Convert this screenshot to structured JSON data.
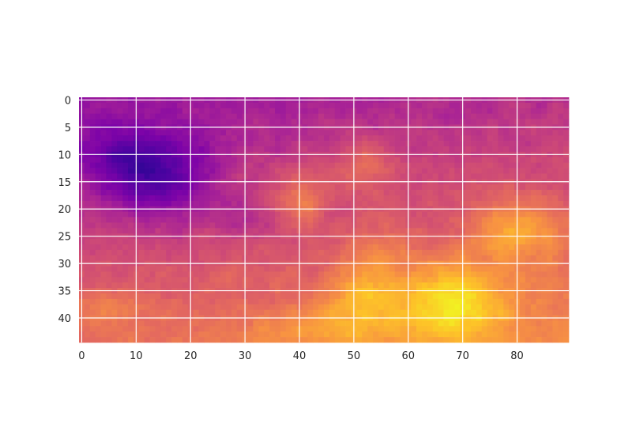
{
  "chart_data": {
    "type": "heatmap",
    "title": "",
    "xlabel": "",
    "ylabel": "",
    "colormap": "plasma",
    "grid": true,
    "grid_color": "#ffffff",
    "n_cols": 90,
    "n_rows": 45,
    "xlim": [
      -0.5,
      89.5
    ],
    "ylim": [
      44.5,
      -0.5
    ],
    "x_ticks": [
      0,
      10,
      20,
      30,
      40,
      50,
      60,
      70,
      80
    ],
    "x_tick_labels": [
      "0",
      "10",
      "20",
      "30",
      "40",
      "50",
      "60",
      "70",
      "80"
    ],
    "y_ticks": [
      0,
      5,
      10,
      15,
      20,
      25,
      30,
      35,
      40
    ],
    "y_tick_labels": [
      "0",
      "5",
      "10",
      "15",
      "20",
      "25",
      "30",
      "35",
      "40"
    ],
    "value_range": [
      0,
      1
    ],
    "field": {
      "base": 0.33,
      "row_gradient": 0.3,
      "col_gradient": 0.1,
      "noise": 0.07,
      "features": [
        {
          "kind": "low",
          "col": 14,
          "row": 14,
          "radius_cols": 10,
          "radius_rows": 8,
          "amplitude": 0.3
        },
        {
          "kind": "low",
          "col": 5,
          "row": 10,
          "radius_cols": 7,
          "radius_rows": 6,
          "amplitude": 0.12
        },
        {
          "kind": "low",
          "col": 30,
          "row": 22,
          "radius_cols": 8,
          "radius_rows": 4,
          "amplitude": 0.08
        },
        {
          "kind": "high",
          "col": 40,
          "row": 18,
          "radius_cols": 5,
          "radius_rows": 5,
          "amplitude": 0.18
        },
        {
          "kind": "high",
          "col": 52,
          "row": 12,
          "radius_cols": 6,
          "radius_rows": 5,
          "amplitude": 0.15
        },
        {
          "kind": "high",
          "col": 68,
          "row": 37,
          "radius_cols": 9,
          "radius_rows": 7,
          "amplitude": 0.32
        },
        {
          "kind": "high",
          "col": 52,
          "row": 36,
          "radius_cols": 7,
          "radius_rows": 6,
          "amplitude": 0.2
        },
        {
          "kind": "high",
          "col": 80,
          "row": 24,
          "radius_cols": 8,
          "radius_rows": 6,
          "amplitude": 0.22
        },
        {
          "kind": "high",
          "col": 55,
          "row": 28,
          "radius_cols": 5,
          "radius_rows": 5,
          "amplitude": 0.1
        },
        {
          "kind": "high",
          "col": 5,
          "row": 38,
          "radius_cols": 6,
          "radius_rows": 4,
          "amplitude": 0.1
        },
        {
          "kind": "high",
          "col": 44,
          "row": 42,
          "radius_cols": 14,
          "radius_rows": 4,
          "amplitude": 0.1
        }
      ]
    }
  }
}
